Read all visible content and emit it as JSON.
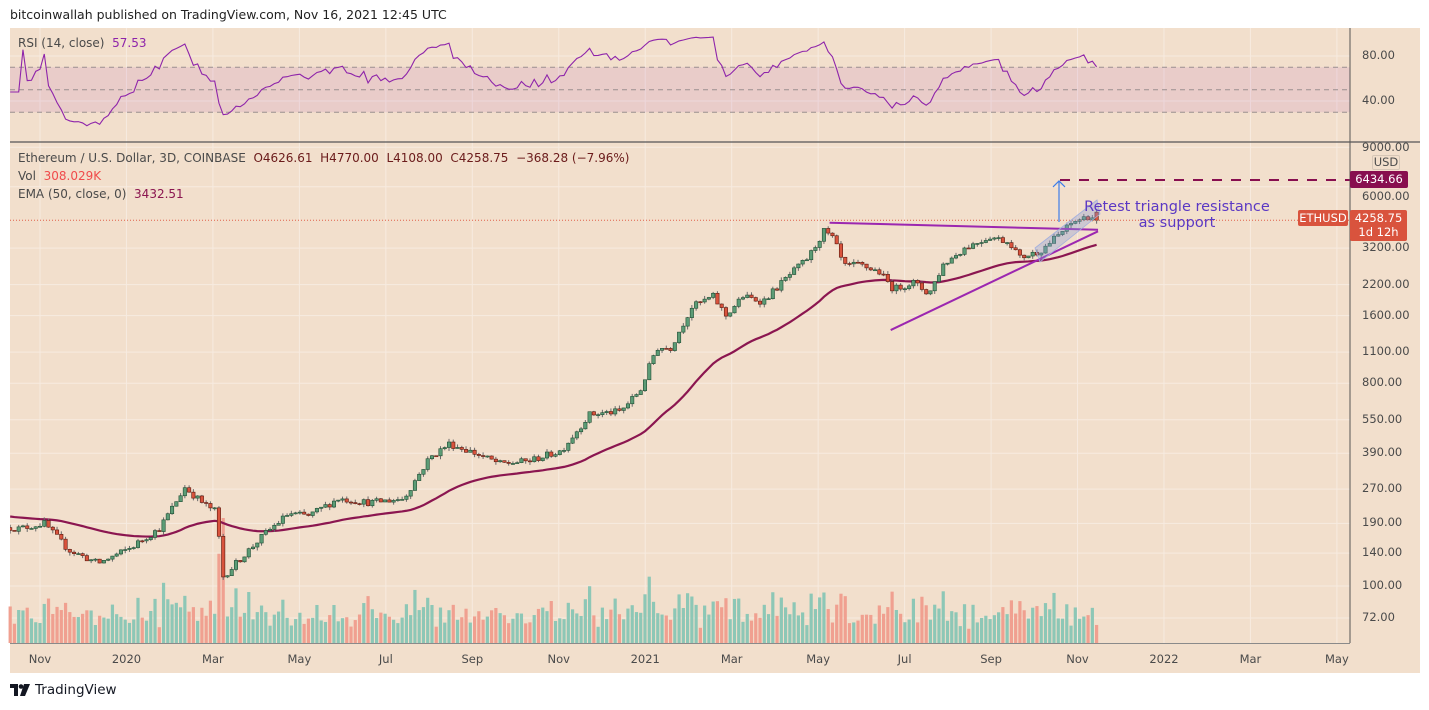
{
  "header": {
    "published": "bitcoinwallah published on TradingView.com, Nov 16, 2021 12:45 UTC"
  },
  "rsi_legend": {
    "label": "RSI (14, close)",
    "value": "57.53"
  },
  "legend": {
    "symbol": "Ethereum / U.S. Dollar, 3D, COINBASE",
    "open": "O4626.61",
    "high": "H4770.00",
    "low": "L4108.00",
    "close": "C4258.75",
    "change": "−368.28 (−7.96%)",
    "vol_label": "Vol",
    "vol_value": "308.029K",
    "ema_label": "EMA (50, close, 0)",
    "ema_value": "3432.51"
  },
  "price_axis": {
    "currency": "USD",
    "ticks": [
      "9000.00",
      "6000.00",
      "3200.00",
      "2200.00",
      "1600.00",
      "1100.00",
      "800.00",
      "550.00",
      "390.00",
      "270.00",
      "190.00",
      "140.00",
      "100.00",
      "72.00"
    ],
    "tick_values": [
      9000,
      6000,
      3200,
      2200,
      1600,
      1100,
      800,
      550,
      390,
      270,
      190,
      140,
      100,
      72
    ],
    "target_label": "6434.66",
    "symbol_label": "ETHUSD",
    "last_price": "4258.75",
    "countdown": "1d 12h"
  },
  "rsi_axis": {
    "ticks": [
      "80.00",
      "40.00"
    ],
    "tick_values": [
      80,
      40
    ]
  },
  "time_axis": {
    "labels": [
      "Nov",
      "2020",
      "Mar",
      "May",
      "Jul",
      "Sep",
      "Nov",
      "2021",
      "Mar",
      "May",
      "Jul",
      "Sep",
      "Nov",
      "2022",
      "Mar",
      "May"
    ]
  },
  "annotation": {
    "line1": "Retest triangle resistance",
    "line2": "as support"
  },
  "footer": {
    "brand": "TradingView"
  },
  "colors": {
    "background": "#f2dfcc",
    "up": "#5c9c76",
    "down": "#d9533d",
    "ema": "#8b1650",
    "rsi": "#8e24aa",
    "trendline": "#9c27b0",
    "target": "#880e4f",
    "note": "#5b38c4"
  },
  "chart_data": {
    "type": "candlestick",
    "title": "Ethereum / U.S. Dollar, 3D, COINBASE",
    "scale": "log",
    "ylim": [
      60,
      9500
    ],
    "interval_days": 3,
    "start_date": "2019-10-11",
    "end_date": "2021-11-15",
    "ema_period": 50,
    "ema_start": 205,
    "rsi_period": 14,
    "close_path": [
      [
        "2019-10-11",
        182
      ],
      [
        "2019-10-17",
        180
      ],
      [
        "2019-11-04",
        190
      ],
      [
        "2019-11-21",
        145
      ],
      [
        "2019-12-12",
        126
      ],
      [
        "2020-01-03",
        147
      ],
      [
        "2020-01-24",
        180
      ],
      [
        "2020-02-11",
        275
      ],
      [
        "2020-02-25",
        230
      ],
      [
        "2020-03-04",
        215
      ],
      [
        "2020-03-09",
        110
      ],
      [
        "2020-03-20",
        130
      ],
      [
        "2020-04-07",
        170
      ],
      [
        "2020-04-24",
        210
      ],
      [
        "2020-05-08",
        205
      ],
      [
        "2020-05-29",
        245
      ],
      [
        "2020-06-20",
        235
      ],
      [
        "2020-07-14",
        245
      ],
      [
        "2020-08-01",
        370
      ],
      [
        "2020-08-15",
        430
      ],
      [
        "2020-08-29",
        400
      ],
      [
        "2020-09-20",
        350
      ],
      [
        "2020-10-10",
        360
      ],
      [
        "2020-11-02",
        400
      ],
      [
        "2020-11-22",
        580
      ],
      [
        "2020-12-14",
        600
      ],
      [
        "2020-12-28",
        750
      ],
      [
        "2021-01-08",
        1150
      ],
      [
        "2021-01-18",
        1150
      ],
      [
        "2021-02-02",
        1750
      ],
      [
        "2021-02-17",
        1950
      ],
      [
        "2021-02-26",
        1600
      ],
      [
        "2021-03-10",
        1950
      ],
      [
        "2021-03-24",
        1850
      ],
      [
        "2021-04-11",
        2400
      ],
      [
        "2021-04-25",
        2900
      ],
      [
        "2021-05-06",
        3800
      ],
      [
        "2021-05-13",
        3500
      ],
      [
        "2021-05-20",
        2650
      ],
      [
        "2021-05-31",
        2700
      ],
      [
        "2021-06-14",
        2500
      ],
      [
        "2021-06-24",
        2100
      ],
      [
        "2021-07-08",
        2250
      ],
      [
        "2021-07-19",
        2000
      ],
      [
        "2021-07-29",
        2700
      ],
      [
        "2021-08-13",
        3200
      ],
      [
        "2021-08-31",
        3600
      ],
      [
        "2021-09-14",
        3400
      ],
      [
        "2021-09-21",
        2900
      ],
      [
        "2021-10-05",
        3100
      ],
      [
        "2021-10-19",
        3700
      ],
      [
        "2021-10-29",
        4200
      ],
      [
        "2021-11-09",
        4450
      ],
      [
        "2021-11-15",
        4258.75
      ]
    ],
    "last_candle": {
      "open": 4626.61,
      "high": 4770.0,
      "low": 4108.0,
      "close": 4258.75,
      "volume_k": 308.029
    },
    "target_price": 6434.66,
    "rsi_last": 57.53,
    "ema_last": 3432.51,
    "rsi_levels": [
      70,
      50,
      30
    ],
    "triangle_resistance": [
      [
        "2021-05-10",
        4150
      ],
      [
        "2021-11-15",
        3860
      ]
    ],
    "triangle_support": [
      [
        "2021-06-22",
        1380
      ],
      [
        "2021-11-15",
        3800
      ]
    ]
  }
}
